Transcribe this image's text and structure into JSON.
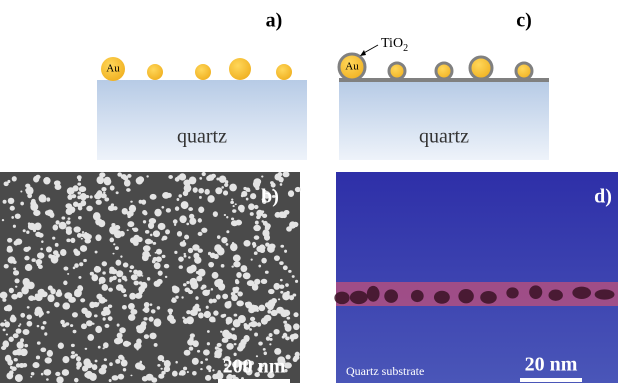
{
  "panels": {
    "a": {
      "label": "a)",
      "particle_label": "Au",
      "substrate": "quartz"
    },
    "b": {
      "label": "b)",
      "scale_bar": "200 nm"
    },
    "c": {
      "label": "c)",
      "particle_label": "Au",
      "shell_label": "TiO",
      "shell_subscript": "2",
      "substrate": "quartz"
    },
    "d": {
      "label": "d)",
      "caption": "Quartz substrate",
      "scale_bar": "20 nm"
    }
  }
}
